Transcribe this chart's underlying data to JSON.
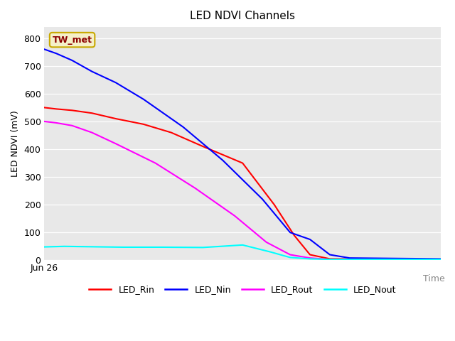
{
  "title": "LED NDVI Channels",
  "ylabel": "LED NDVI (mV)",
  "xlabel_label": "Time",
  "xlabel_tick": "Jun 26",
  "annotation": "TW_met",
  "ylim": [
    0,
    840
  ],
  "yticks": [
    0,
    100,
    200,
    300,
    400,
    500,
    600,
    700,
    800
  ],
  "bg_color": "#e8e8e8",
  "grid_color": "#ffffff",
  "series": {
    "LED_Rin": {
      "color": "red",
      "x": [
        0,
        0.03,
        0.07,
        0.12,
        0.18,
        0.25,
        0.32,
        0.4,
        0.5,
        0.58,
        0.63,
        0.67,
        0.72,
        1.0
      ],
      "y": [
        550,
        545,
        540,
        530,
        510,
        490,
        460,
        410,
        350,
        200,
        90,
        20,
        5,
        3
      ]
    },
    "LED_Nin": {
      "color": "blue",
      "x": [
        0,
        0.03,
        0.07,
        0.12,
        0.18,
        0.25,
        0.35,
        0.45,
        0.55,
        0.62,
        0.67,
        0.72,
        0.77,
        1.0
      ],
      "y": [
        760,
        745,
        720,
        680,
        640,
        580,
        480,
        360,
        220,
        100,
        75,
        20,
        8,
        5
      ]
    },
    "LED_Rout": {
      "color": "magenta",
      "x": [
        0,
        0.03,
        0.07,
        0.12,
        0.18,
        0.28,
        0.38,
        0.48,
        0.56,
        0.62,
        0.67,
        0.72,
        1.0
      ],
      "y": [
        500,
        495,
        485,
        460,
        420,
        350,
        260,
        160,
        65,
        20,
        8,
        3,
        2
      ]
    },
    "LED_Nout": {
      "color": "cyan",
      "x": [
        0,
        0.05,
        0.1,
        0.15,
        0.2,
        0.3,
        0.4,
        0.5,
        0.57,
        0.62,
        0.67,
        0.72,
        1.0
      ],
      "y": [
        48,
        50,
        49,
        48,
        47,
        47,
        46,
        55,
        30,
        10,
        5,
        3,
        3
      ]
    }
  },
  "legend_entries": [
    "LED_Rin",
    "LED_Nin",
    "LED_Rout",
    "LED_Nout"
  ],
  "legend_colors": [
    "red",
    "blue",
    "magenta",
    "cyan"
  ]
}
